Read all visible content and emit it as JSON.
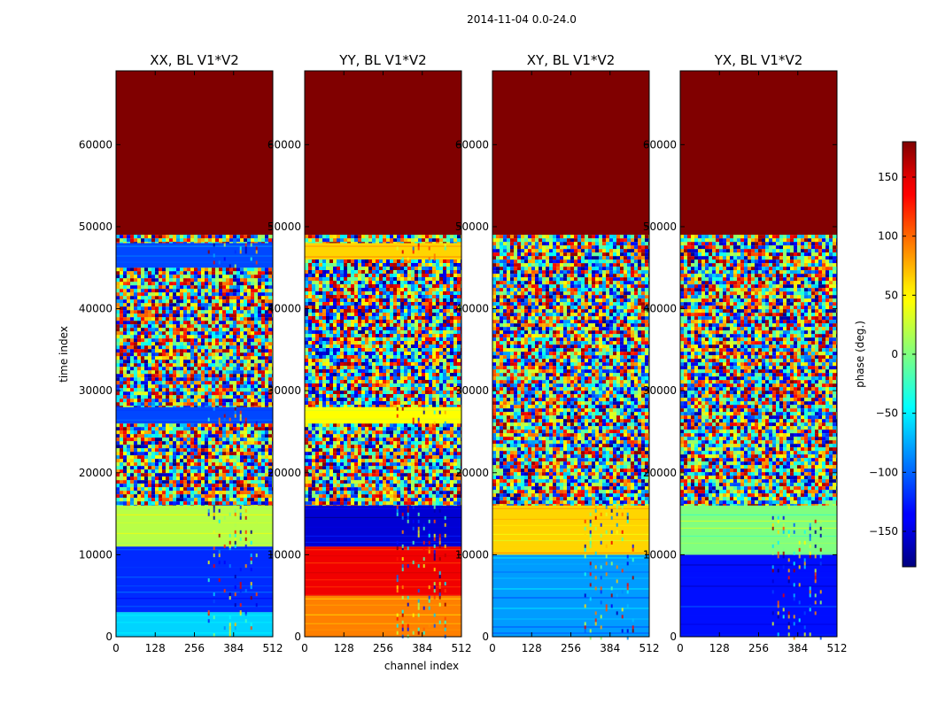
{
  "suptitle": "2014-11-04 0.0-24.0",
  "chart_data": {
    "type": "heatmap",
    "colormap": "jet",
    "xlabel": "channel index",
    "ylabel": "time index",
    "xlim": [
      0,
      512
    ],
    "ylim": [
      0,
      69000
    ],
    "x_ticks": [
      0,
      128,
      256,
      384,
      512
    ],
    "y_ticks": [
      0,
      10000,
      20000,
      30000,
      40000,
      50000,
      60000
    ],
    "colorbar": {
      "label": "phase (deg.)",
      "range": [
        -180,
        180
      ],
      "ticks": [
        150,
        100,
        50,
        0,
        -50,
        -100,
        -150
      ],
      "tick_labels": [
        "150",
        "100",
        "50",
        "0",
        "−50",
        "−100",
        "−150"
      ]
    },
    "saturated_region": {
      "y_from": 49000,
      "y_to": 69000,
      "phase": 180
    },
    "panels": [
      {
        "title": "XX, BL V1*V2",
        "bands": [
          {
            "y_from": 0,
            "y_to": 3000,
            "phase": -60
          },
          {
            "y_from": 3000,
            "y_to": 11000,
            "phase": -120
          },
          {
            "y_from": 11000,
            "y_to": 16000,
            "phase": 20
          },
          {
            "y_from": 16000,
            "y_to": 26000,
            "phase": "noise"
          },
          {
            "y_from": 26000,
            "y_to": 28000,
            "phase": -110
          },
          {
            "y_from": 28000,
            "y_to": 45000,
            "phase": "noise"
          },
          {
            "y_from": 45000,
            "y_to": 48000,
            "phase": -110
          },
          {
            "y_from": 48000,
            "y_to": 49000,
            "phase": "noise"
          }
        ]
      },
      {
        "title": "YY, BL V1*V2",
        "bands": [
          {
            "y_from": 0,
            "y_to": 5000,
            "phase": 90
          },
          {
            "y_from": 5000,
            "y_to": 11000,
            "phase": 140
          },
          {
            "y_from": 11000,
            "y_to": 16000,
            "phase": -150
          },
          {
            "y_from": 16000,
            "y_to": 26000,
            "phase": "noise"
          },
          {
            "y_from": 26000,
            "y_to": 28000,
            "phase": 45
          },
          {
            "y_from": 28000,
            "y_to": 46000,
            "phase": "noise"
          },
          {
            "y_from": 46000,
            "y_to": 48000,
            "phase": 60
          },
          {
            "y_from": 48000,
            "y_to": 49000,
            "phase": "noise"
          }
        ]
      },
      {
        "title": "XY, BL V1*V2",
        "bands": [
          {
            "y_from": 0,
            "y_to": 10000,
            "phase": -80
          },
          {
            "y_from": 10000,
            "y_to": 16000,
            "phase": 60
          },
          {
            "y_from": 16000,
            "y_to": 49000,
            "phase": "noise"
          }
        ]
      },
      {
        "title": "YX, BL V1*V2",
        "bands": [
          {
            "y_from": 0,
            "y_to": 10000,
            "phase": -130
          },
          {
            "y_from": 10000,
            "y_to": 16000,
            "phase": 0
          },
          {
            "y_from": 16000,
            "y_to": 49000,
            "phase": "noise"
          }
        ]
      }
    ]
  }
}
